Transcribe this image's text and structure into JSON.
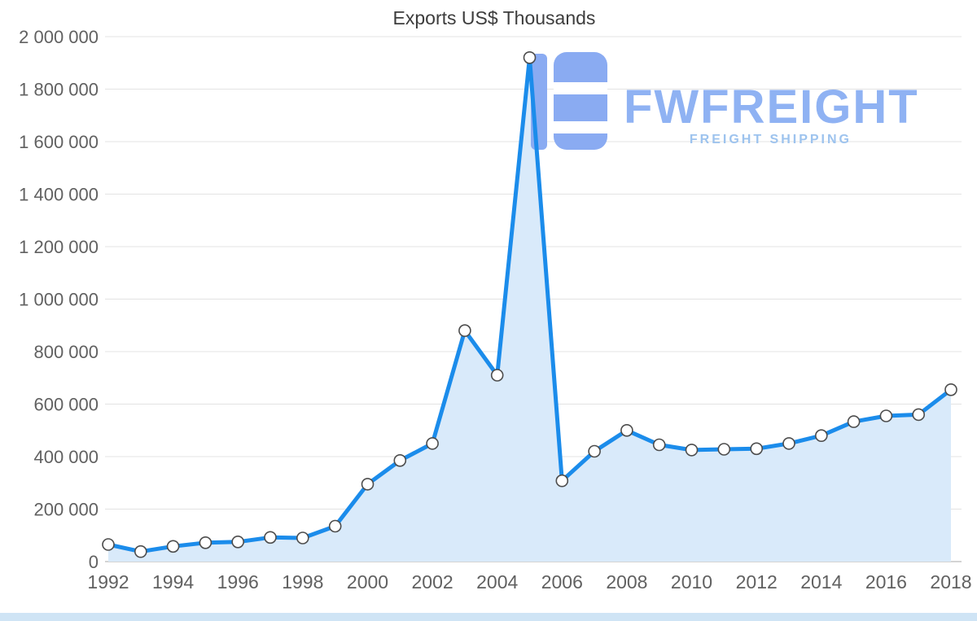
{
  "page": {
    "footer_bar_color": "#cfe4f5"
  },
  "title": "Exports US$ Thousands",
  "logo": {
    "name": "FWFREIGHT",
    "tagline": "FREIGHT SHIPPING",
    "icon": "stylized-f-icon",
    "icon_color": "#8aabf2",
    "color_primary": "#8fb2f3",
    "color_secondary": "#9dc3ee"
  },
  "chart_data": {
    "type": "area",
    "title": "Exports US$ Thousands",
    "x": [
      1992,
      1993,
      1994,
      1995,
      1996,
      1997,
      1998,
      1999,
      2000,
      2001,
      2002,
      2003,
      2004,
      2005,
      2006,
      2007,
      2008,
      2009,
      2010,
      2011,
      2012,
      2013,
      2014,
      2015,
      2016,
      2017,
      2018
    ],
    "series": [
      {
        "name": "Exports US$ Thousands",
        "values": [
          65000,
          38000,
          58000,
          72000,
          75000,
          92000,
          90000,
          135000,
          295000,
          385000,
          450000,
          880000,
          710000,
          1920000,
          308000,
          420000,
          500000,
          445000,
          425000,
          428000,
          430000,
          450000,
          480000,
          533000,
          555000,
          560000,
          655000
        ]
      }
    ],
    "ylim": [
      0,
      2000000
    ],
    "ytick_values": [
      0,
      200000,
      400000,
      600000,
      800000,
      1000000,
      1200000,
      1400000,
      1600000,
      1800000,
      2000000
    ],
    "ytick_labels": [
      "0",
      "200 000",
      "400 000",
      "600 000",
      "800 000",
      "1 000 000",
      "1 200 000",
      "1 400 000",
      "1 600 000",
      "1 800 000",
      "2 000 000"
    ],
    "xtick_labels": [
      "1992",
      "1994",
      "1996",
      "1998",
      "2000",
      "2002",
      "2004",
      "2006",
      "2008",
      "2010",
      "2012",
      "2014",
      "2016",
      "2018"
    ],
    "grid": true,
    "legend": "none",
    "line_color": "#1b8ceb",
    "area_color": "#d9eafa",
    "grid_color": "#e3e3e3",
    "axis_color": "#c6c6c6",
    "tick_label_color": "#616161",
    "marker": {
      "fill": "#ffffff",
      "stroke": "#4d4d4d",
      "radius": 7
    }
  }
}
